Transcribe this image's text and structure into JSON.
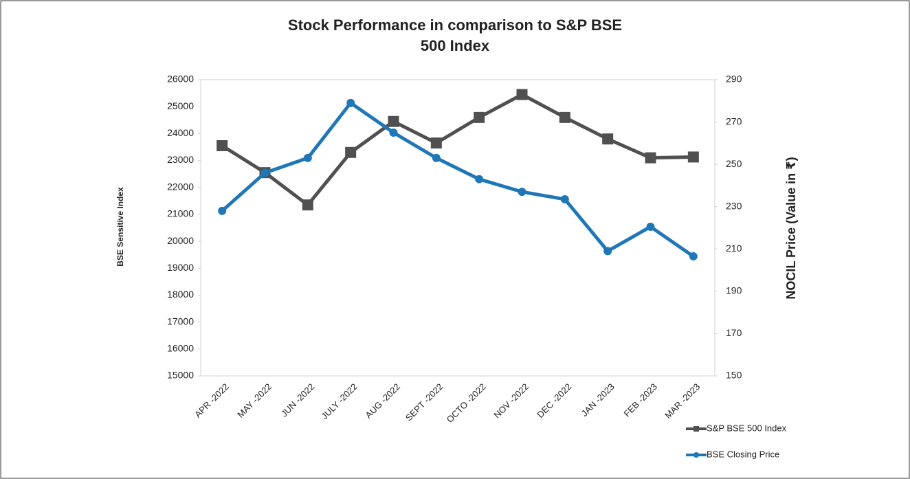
{
  "chart_data": {
    "type": "line",
    "title": "Stock Performance in comparison to S&P BSE 500 Index",
    "y_label": "BSE Sensitive Index",
    "y2_label": "NOCIL Price (Value in ₹)",
    "categories": [
      "APR -2022",
      "MAY -2022",
      "JUN -2022",
      "JULY -2022",
      "AUG -2022",
      "SEPT -2022",
      "OCTO -2022",
      "NOV -2022",
      "DEC -2022",
      "JAN -2023",
      "FEB -2023",
      "MAR -2023"
    ],
    "series": [
      {
        "name": "S&P BSE 500 Index",
        "color": "#505050",
        "marker": "square",
        "values": [
          23550,
          22550,
          21350,
          23300,
          24450,
          23650,
          24600,
          25450,
          24600,
          23800,
          23100,
          23130
        ]
      },
      {
        "name": "BSE Closing Price",
        "color": "#1f77b8",
        "marker": "circle",
        "axis": "y2",
        "values": [
          228,
          246,
          253,
          279,
          265,
          253,
          243,
          237,
          233.5,
          209,
          220.5,
          206.5
        ]
      }
    ],
    "ylim": [
      15000,
      26000
    ],
    "yticks": [
      15000,
      16000,
      17000,
      18000,
      19000,
      20000,
      21000,
      22000,
      23000,
      24000,
      25000,
      26000
    ],
    "y2lim": [
      150,
      290
    ],
    "y2ticks": [
      150,
      170,
      190,
      210,
      230,
      250,
      270,
      290
    ],
    "grid": false,
    "legend": "bottom-right"
  }
}
